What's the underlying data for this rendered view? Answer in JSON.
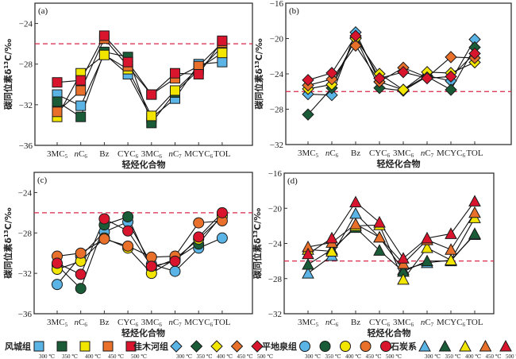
{
  "chart_data": [
    {
      "type": "line",
      "panel": "(a)",
      "title": "",
      "xlabel": "轻烃化合物",
      "ylabel": "碳同位素δ¹³C/‰",
      "ylim": [
        -36,
        -22
      ],
      "yticks": [
        -24,
        -28,
        -32,
        -36
      ],
      "marker": "square",
      "reference_line": -26,
      "categories": [
        "3MC5",
        "nC6",
        "Bz",
        "CYC6",
        "3MC6",
        "nC7",
        "MCYC6",
        "TOL"
      ],
      "series": [
        {
          "name": "风城组 300 ℃",
          "color": "#5ab4e5",
          "values": [
            -31.0,
            -32.1,
            -27.0,
            -29.0,
            -33.3,
            -31.4,
            -28.0,
            -27.8
          ]
        },
        {
          "name": "风城组 350 ℃",
          "color": "#1a5c38",
          "values": [
            -31.7,
            -33.2,
            -26.8,
            -27.3,
            -33.8,
            -30.8,
            -28.6,
            -26.3
          ]
        },
        {
          "name": "风城组 400 ℃",
          "color": "#f2e600",
          "values": [
            -33.2,
            -28.9,
            -27.1,
            -28.5,
            -33.1,
            -30.6,
            -28.4,
            -26.9
          ]
        },
        {
          "name": "风城组 450 ℃",
          "color": "#e8702a",
          "values": [
            -32.7,
            -30.6,
            -25.5,
            -28.2,
            -31.0,
            -29.4,
            -28.2,
            -25.9
          ]
        },
        {
          "name": "风城组 500 ℃",
          "color": "#d9152e",
          "values": [
            -29.8,
            -29.6,
            -25.2,
            -27.8,
            -31.0,
            -28.9,
            -29.0,
            -25.7
          ]
        }
      ]
    },
    {
      "type": "line",
      "panel": "(b)",
      "title": "",
      "xlabel": "轻烃化合物",
      "ylabel": "碳同位素δ¹³C/‰",
      "ylim": [
        -32,
        -16
      ],
      "yticks": [
        -16,
        -20,
        -24,
        -28,
        -32
      ],
      "marker": "diamond",
      "reference_line": -26,
      "categories": [
        "3MC5",
        "nC6",
        "Bz",
        "CYC6",
        "3MC6",
        "nC7",
        "MCYC6",
        "TOL"
      ],
      "series": [
        {
          "name": "佳木河组 300 ℃",
          "color": "#5ab4e5",
          "values": [
            -26.3,
            -26.4,
            -19.3,
            -24.9,
            -25.8,
            -24.2,
            -24.8,
            -20.1
          ]
        },
        {
          "name": "佳木河组 350 ℃",
          "color": "#1a5c38",
          "values": [
            -28.6,
            -25.6,
            -19.9,
            -25.6,
            -25.9,
            -24.3,
            -25.8,
            -21.0
          ]
        },
        {
          "name": "佳木河组 400 ℃",
          "color": "#f2e600",
          "values": [
            -25.7,
            -25.2,
            -20.0,
            -24.0,
            -25.8,
            -23.8,
            -23.9,
            -22.7
          ]
        },
        {
          "name": "佳木河组 450 ℃",
          "color": "#e8702a",
          "values": [
            -25.3,
            -24.6,
            -20.8,
            -24.9,
            -23.3,
            -24.4,
            -22.1,
            -22.2
          ]
        },
        {
          "name": "佳木河组 500 ℃",
          "color": "#d9152e",
          "values": [
            -24.7,
            -23.9,
            -19.7,
            -24.5,
            -23.8,
            -24.5,
            -24.3,
            -21.7
          ]
        }
      ]
    },
    {
      "type": "line",
      "panel": "(c)",
      "title": "",
      "xlabel": "轻烃化合物",
      "ylabel": "碳同位素δ¹³C/‰",
      "ylim": [
        -36,
        -22
      ],
      "yticks": [
        -24,
        -28,
        -32,
        -36
      ],
      "marker": "circle",
      "reference_line": -26,
      "categories": [
        "3MC5",
        "nC6",
        "Bz",
        "CYC6",
        "3MC6",
        "nC7",
        "MCYC6",
        "TOL"
      ],
      "series": [
        {
          "name": "平地泉组 300 ℃",
          "color": "#5ab4e5",
          "values": [
            -33.1,
            -30.3,
            -27.9,
            -26.9,
            -31.1,
            -31.8,
            -29.5,
            -28.5
          ]
        },
        {
          "name": "平地泉组 350 ℃",
          "color": "#1a5c38",
          "values": [
            -31.2,
            -33.5,
            -27.2,
            -26.4,
            -31.5,
            -30.6,
            -29.1,
            -26.2
          ]
        },
        {
          "name": "平地泉组 400 ℃",
          "color": "#f2e600",
          "values": [
            -31.6,
            -30.8,
            -28.5,
            -29.5,
            -32.0,
            -30.6,
            -28.6,
            -26.4
          ]
        },
        {
          "name": "平地泉组 450 ℃",
          "color": "#e8702a",
          "values": [
            -30.3,
            -30.0,
            -28.6,
            -29.3,
            -30.4,
            -30.3,
            -27.0,
            -26.8
          ]
        },
        {
          "name": "平地泉组 500 ℃",
          "color": "#d9152e",
          "values": [
            -31.0,
            -32.1,
            -26.6,
            -27.8,
            -31.3,
            -30.8,
            -28.4,
            -26.0
          ]
        }
      ]
    },
    {
      "type": "line",
      "panel": "(d)",
      "title": "",
      "xlabel": "轻烃化合物",
      "ylabel": "碳同位素δ¹³C/‰",
      "ylim": [
        -32,
        -16
      ],
      "yticks": [
        -16,
        -20,
        -24,
        -28,
        -32
      ],
      "marker": "triangle",
      "reference_line": -26,
      "categories": [
        "3MC5",
        "nC6",
        "Bz",
        "CYC6",
        "3MC6",
        "nC7",
        "MCYC6",
        "TOL"
      ],
      "series": [
        {
          "name": "石炭系 300 ℃",
          "color": "#5ab4e5",
          "values": [
            -27.4,
            -25.4,
            -20.6,
            -23.3,
            -27.0,
            -26.2,
            -25.9,
            -23.0
          ]
        },
        {
          "name": "石炭系 350 ℃",
          "color": "#1a5c38",
          "values": [
            -26.4,
            -24.7,
            -22.2,
            -24.8,
            -27.2,
            -26.0,
            -26.0,
            -22.9
          ]
        },
        {
          "name": "石炭系 400 ℃",
          "color": "#f2e600",
          "values": [
            -24.7,
            -24.9,
            -22.0,
            -21.9,
            -28.1,
            -24.5,
            -25.9,
            -21.1
          ]
        },
        {
          "name": "石炭系 450 ℃",
          "color": "#e8702a",
          "values": [
            -24.4,
            -23.9,
            -21.8,
            -23.3,
            -26.3,
            -23.6,
            -24.7,
            -20.5
          ]
        },
        {
          "name": "石炭系 500 ℃",
          "color": "#d9152e",
          "values": [
            -25.2,
            -23.4,
            -19.3,
            -21.6,
            -25.7,
            -23.4,
            -22.9,
            -19.2
          ]
        }
      ]
    }
  ],
  "category_labels": [
    {
      "base": "3MC",
      "sub": "5",
      "italic_prefix": ""
    },
    {
      "base": "C",
      "sub": "6",
      "italic_prefix": "n"
    },
    {
      "base": "Bz",
      "sub": "",
      "italic_prefix": ""
    },
    {
      "base": "CYC",
      "sub": "6",
      "italic_prefix": ""
    },
    {
      "base": "3MC",
      "sub": "6",
      "italic_prefix": ""
    },
    {
      "base": "C",
      "sub": "7",
      "italic_prefix": "n"
    },
    {
      "base": "MCYC",
      "sub": "6",
      "italic_prefix": ""
    },
    {
      "base": "TOL",
      "sub": "",
      "italic_prefix": ""
    }
  ],
  "axis_text": {
    "ylabel_prefix": "碳同位素δ",
    "ylabel_sup": "13",
    "ylabel_suffix": "C/‰",
    "xlabel": "轻烃化合物"
  },
  "legend": {
    "groups": [
      {
        "label": "风城组",
        "marker": "square"
      },
      {
        "label": "佳木河组",
        "marker": "diamond"
      },
      {
        "label": "平地泉组",
        "marker": "circle"
      },
      {
        "label": "石炭系",
        "marker": "triangle"
      }
    ],
    "temperatures": [
      "300 ℃",
      "350 ℃",
      "400 ℃",
      "450 ℃",
      "500 ℃"
    ],
    "colors": [
      "#5ab4e5",
      "#1a5c38",
      "#f2e600",
      "#e8702a",
      "#d9152e"
    ]
  },
  "style": {
    "reference_line_color": "#d9264a",
    "frame_color": "#333333"
  }
}
